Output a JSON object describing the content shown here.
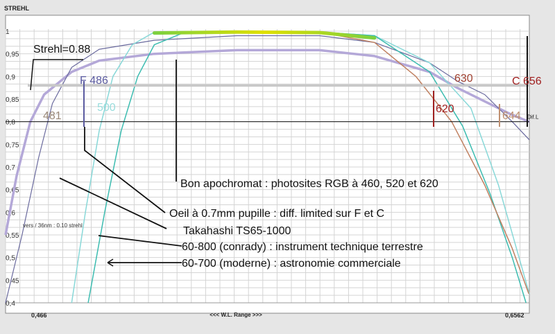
{
  "chart_data": {
    "type": "line",
    "ylabel": "STREHL",
    "xlabel": "<<<  W.L. Range  >>>",
    "x_min_label": "0,466",
    "x_max_label": "0,6562",
    "xlim": [
      0.466,
      0.6562
    ],
    "ylim": [
      0.4,
      1.0
    ],
    "y_ticks": [
      {
        "v": 1.0,
        "label": "1"
      },
      {
        "v": 0.95,
        "label": "0,95"
      },
      {
        "v": 0.9,
        "label": "0,9"
      },
      {
        "v": 0.85,
        "label": "0,85"
      },
      {
        "v": 0.8,
        "label": "0,8"
      },
      {
        "v": 0.75,
        "label": "0,75"
      },
      {
        "v": 0.7,
        "label": "0,7"
      },
      {
        "v": 0.65,
        "label": "0,65"
      },
      {
        "v": 0.6,
        "label": "0,6"
      },
      {
        "v": 0.55,
        "label": "0,55"
      },
      {
        "v": 0.5,
        "label": "0,5"
      },
      {
        "v": 0.45,
        "label": "0,45"
      },
      {
        "v": 0.4,
        "label": "0,4"
      }
    ],
    "grid": true,
    "strehl_threshold": {
      "value": 0.88,
      "label": "Strehl=0.88"
    },
    "diff_limit": {
      "value": 0.8,
      "label": "Dif.L"
    },
    "series": [
      {
        "color": "#b4a8d8",
        "width": 3.5,
        "points": [
          [
            0.466,
            0.55
          ],
          [
            0.47,
            0.68
          ],
          [
            0.475,
            0.8
          ],
          [
            0.48,
            0.86
          ],
          [
            0.49,
            0.91
          ],
          [
            0.5,
            0.935
          ],
          [
            0.52,
            0.95
          ],
          [
            0.55,
            0.958
          ],
          [
            0.58,
            0.958
          ],
          [
            0.6,
            0.945
          ],
          [
            0.62,
            0.91
          ],
          [
            0.63,
            0.875
          ],
          [
            0.64,
            0.845
          ],
          [
            0.65,
            0.815
          ],
          [
            0.6562,
            0.8
          ]
        ]
      },
      {
        "color": "#6a6a9e",
        "width": 1.2,
        "points": [
          [
            0.466,
            0.4
          ],
          [
            0.472,
            0.55
          ],
          [
            0.478,
            0.72
          ],
          [
            0.483,
            0.84
          ],
          [
            0.49,
            0.92
          ],
          [
            0.5,
            0.96
          ],
          [
            0.52,
            0.98
          ],
          [
            0.55,
            0.99
          ],
          [
            0.58,
            0.99
          ],
          [
            0.6,
            0.975
          ],
          [
            0.62,
            0.93
          ],
          [
            0.63,
            0.89
          ],
          [
            0.64,
            0.86
          ],
          [
            0.65,
            0.8
          ],
          [
            0.6562,
            0.76
          ]
        ]
      },
      {
        "color": "#88d8d8",
        "width": 1.5,
        "points": [
          [
            0.49,
            0.4
          ],
          [
            0.495,
            0.6
          ],
          [
            0.5,
            0.78
          ],
          [
            0.505,
            0.9
          ],
          [
            0.512,
            0.97
          ],
          [
            0.52,
            0.998
          ],
          [
            0.55,
            1.0
          ],
          [
            0.58,
            0.998
          ],
          [
            0.6,
            0.99
          ],
          [
            0.62,
            0.93
          ],
          [
            0.635,
            0.83
          ],
          [
            0.645,
            0.66
          ],
          [
            0.6562,
            0.42
          ]
        ]
      },
      {
        "color": "#3cbcb0",
        "width": 1.5,
        "points": [
          [
            0.496,
            0.4
          ],
          [
            0.502,
            0.6
          ],
          [
            0.508,
            0.78
          ],
          [
            0.514,
            0.9
          ],
          [
            0.52,
            0.97
          ],
          [
            0.53,
            0.995
          ],
          [
            0.55,
            1.0
          ],
          [
            0.58,
            0.998
          ],
          [
            0.6,
            0.99
          ],
          [
            0.62,
            0.91
          ],
          [
            0.632,
            0.79
          ],
          [
            0.642,
            0.64
          ],
          [
            0.65,
            0.5
          ],
          [
            0.655,
            0.4
          ]
        ]
      },
      {
        "color": "#c08060",
        "width": 1.5,
        "points": [
          [
            0.58,
            0.998
          ],
          [
            0.6,
            0.975
          ],
          [
            0.615,
            0.9
          ],
          [
            0.628,
            0.8
          ],
          [
            0.64,
            0.66
          ],
          [
            0.65,
            0.52
          ],
          [
            0.656,
            0.42
          ]
        ]
      }
    ],
    "highlight": {
      "colors": [
        "#7cd040",
        "#e0e000",
        "#7cd040"
      ],
      "points": [
        [
          0.52,
          0.996
        ],
        [
          0.55,
          0.998
        ],
        [
          0.58,
          0.997
        ],
        [
          0.6,
          0.985
        ]
      ]
    },
    "markers": [
      {
        "label": "481",
        "color": "#9a8878"
      },
      {
        "label": "F 486",
        "color": "#5a5aa0"
      },
      {
        "label": "500",
        "color": "#98dcdc"
      },
      {
        "label": "620",
        "color": "#a02020"
      },
      {
        "label": "630",
        "color": "#a04030"
      },
      {
        "label": "644",
        "color": "#c09070"
      },
      {
        "label": "C 656",
        "color": "#a02020"
      }
    ],
    "annotations": [
      {
        "label": "Bon apochromat : photosites RGB à 460, 520 et 620"
      },
      {
        "label": "Oeil à 0.7mm pupille : diff. limited  sur F et C"
      },
      {
        "label": "Takahashi TS65-1000"
      },
      {
        "label": "60-800 (conrady) : instrument technique terrestre"
      },
      {
        "label": "60-700 (moderne) : astronomie commerciale"
      }
    ],
    "small_note": "vers / 36nm : 0.10 strehl"
  }
}
